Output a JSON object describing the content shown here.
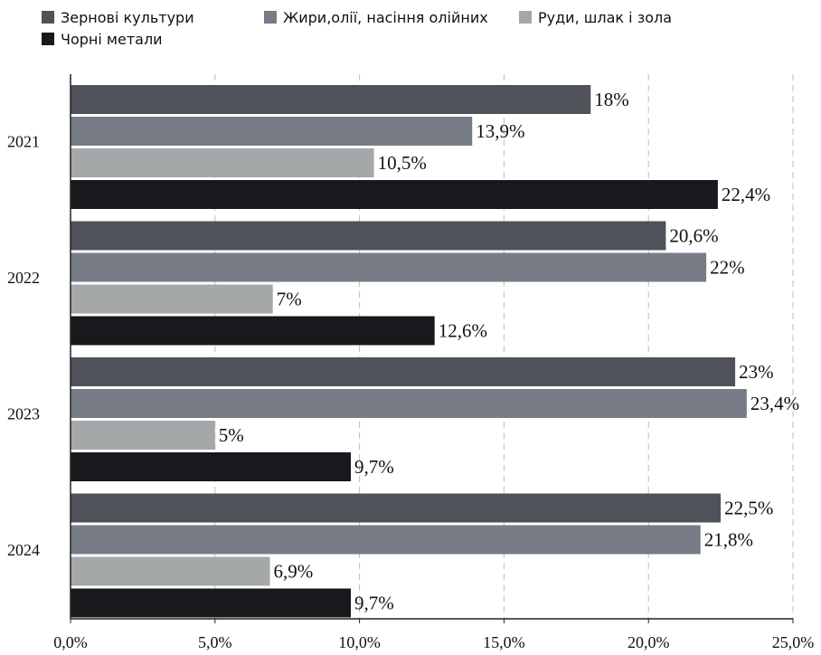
{
  "chart_data": {
    "type": "bar",
    "orientation": "horizontal",
    "categories": [
      "2021",
      "2022",
      "2023",
      "2024"
    ],
    "series": [
      {
        "name": "Зернові культури",
        "color": "#4f5259",
        "values": [
          18,
          20.6,
          23,
          22.5
        ],
        "labels": [
          "18%",
          "20,6%",
          "23%",
          "22,5%"
        ]
      },
      {
        "name": "Жири,олії, насіння олійних",
        "color": "#777c87",
        "values": [
          13.9,
          22,
          23.4,
          21.8
        ],
        "labels": [
          "13,9%",
          "22%",
          "23,4%",
          "21,8%"
        ]
      },
      {
        "name": "Руди, шлак і зола",
        "color": "#a5a8a9",
        "values": [
          10.5,
          7,
          5,
          6.9
        ],
        "labels": [
          "10,5%",
          "7%",
          "5%",
          "6,9%"
        ]
      },
      {
        "name": "Чорні метали",
        "color": "#19181d",
        "values": [
          22.4,
          12.6,
          9.7,
          9.7
        ],
        "labels": [
          "22,4%",
          "12,6%",
          "9,7%",
          "9,7%"
        ]
      }
    ],
    "xlim": [
      0,
      25
    ],
    "xticks": [
      0,
      5,
      10,
      15,
      20,
      25
    ],
    "xtick_labels": [
      "0,0%",
      "5,0%",
      "10,0%",
      "15,0%",
      "20,0%",
      "25,0%"
    ],
    "grid": "vertical dashed",
    "legend_position": "top-left",
    "title": "",
    "xlabel": "",
    "ylabel": ""
  }
}
